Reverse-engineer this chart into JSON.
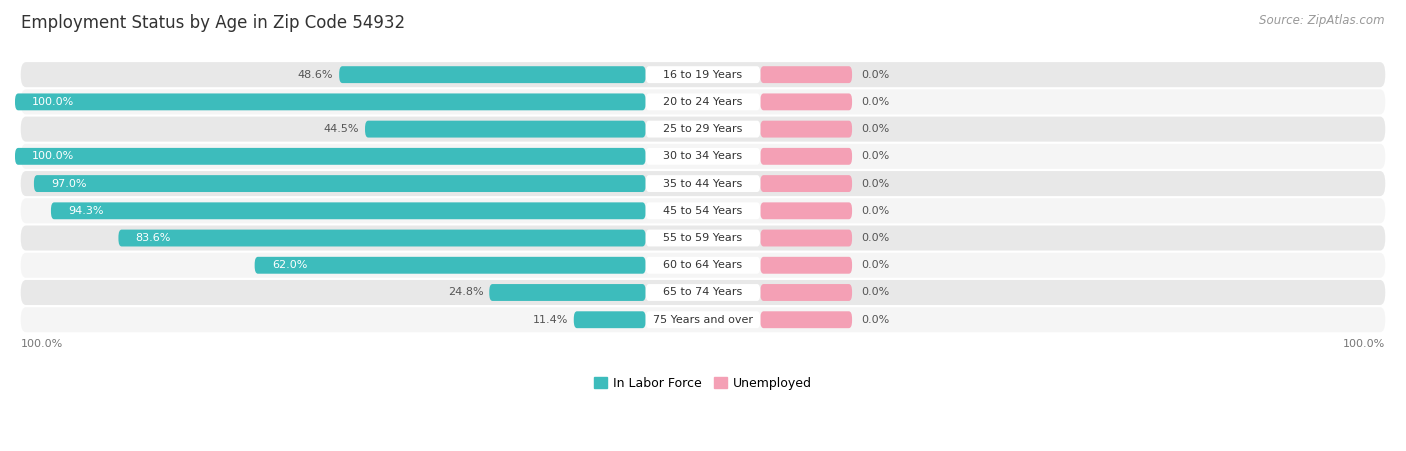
{
  "title": "Employment Status by Age in Zip Code 54932",
  "source": "Source: ZipAtlas.com",
  "categories": [
    "16 to 19 Years",
    "20 to 24 Years",
    "25 to 29 Years",
    "30 to 34 Years",
    "35 to 44 Years",
    "45 to 54 Years",
    "55 to 59 Years",
    "60 to 64 Years",
    "65 to 74 Years",
    "75 Years and over"
  ],
  "in_labor_force": [
    48.6,
    100.0,
    44.5,
    100.0,
    97.0,
    94.3,
    83.6,
    62.0,
    24.8,
    11.4
  ],
  "unemployed": [
    0.0,
    0.0,
    0.0,
    0.0,
    0.0,
    0.0,
    0.0,
    0.0,
    0.0,
    0.0
  ],
  "labor_color": "#3dbcbc",
  "unemployed_color": "#f4a0b5",
  "row_bg_even": "#e8e8e8",
  "row_bg_odd": "#f5f5f5",
  "label_pill_color": "#ffffff",
  "label_color_inside": "#ffffff",
  "label_color_outside": "#555555",
  "title_fontsize": 12,
  "source_fontsize": 8.5,
  "axis_label_fontsize": 8,
  "bar_label_fontsize": 8,
  "cat_label_fontsize": 8,
  "legend_fontsize": 9,
  "bottom_axis_left": "100.0%",
  "bottom_axis_right": "100.0%"
}
